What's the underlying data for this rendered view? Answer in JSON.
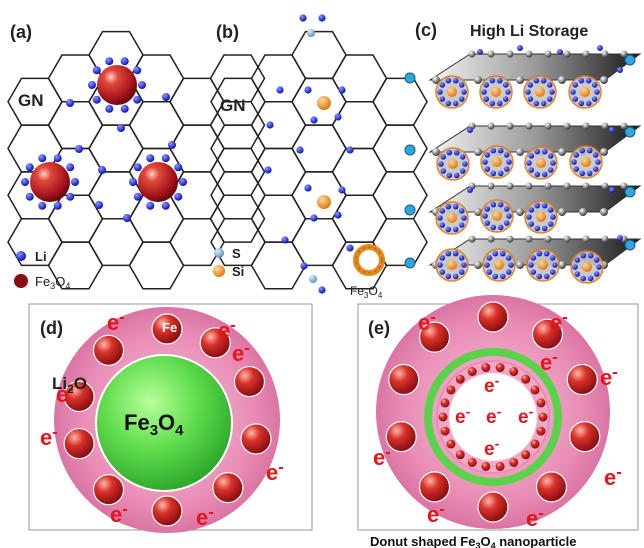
{
  "panels": {
    "a": {
      "label": "(a)",
      "sheet": "GN",
      "legend_li": "Li",
      "legend_fe": "Fe3O4"
    },
    "b": {
      "label": "(b)",
      "sheet": "GN",
      "legend_s": "S",
      "legend_si": "Si",
      "legend_fe": "Fe3O4"
    },
    "c": {
      "label": "(c)",
      "title": "High Li Storage"
    },
    "d": {
      "label": "(d)",
      "fe": "Fe",
      "li2o": "Li2O",
      "core": "Fe3O4",
      "electron": "e-"
    },
    "e": {
      "label": "(e)",
      "electron": "e-",
      "caption": "Donut shaped Fe3O4 nanoparticle"
    }
  },
  "colors": {
    "li": "#1a1fd6",
    "fe3o4": "#b01818",
    "si": "#f0921e",
    "s": "#7fb0d8",
    "pink": "#e58ab0",
    "green": "#4ec94b",
    "electron": "#e8141c"
  }
}
